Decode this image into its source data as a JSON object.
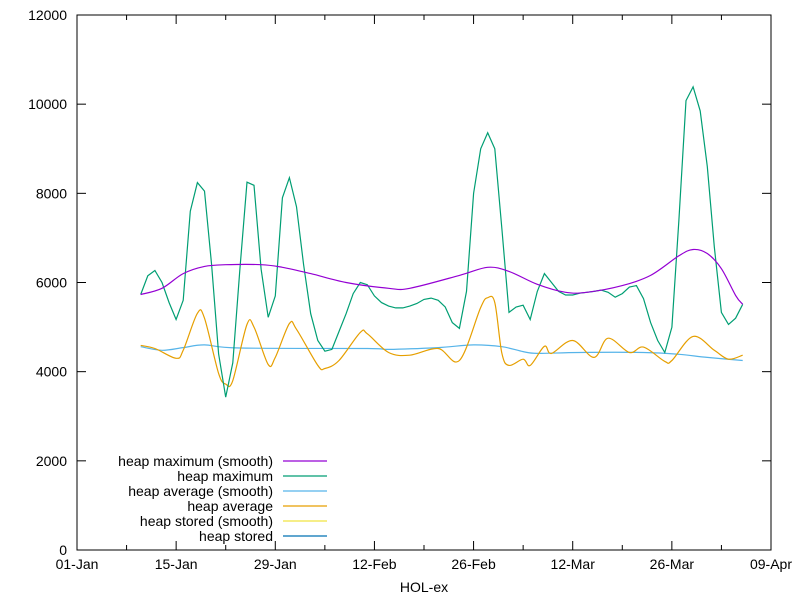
{
  "chart_data": {
    "type": "line",
    "title": "",
    "xlabel": "HOL-ex",
    "ylabel": "",
    "xlim": [
      "01-01",
      "04-09"
    ],
    "ylim": [
      0,
      12000
    ],
    "x_tick_labels": [
      "01-Jan",
      "15-Jan",
      "29-Jan",
      "12-Feb",
      "26-Feb",
      "12-Mar",
      "26-Mar",
      "09-Apr"
    ],
    "x_ticks": [
      "01-01",
      "01-15",
      "01-29",
      "02-12",
      "02-26",
      "03-12",
      "03-26",
      "04-09"
    ],
    "y_ticks": [
      0,
      2000,
      4000,
      6000,
      8000,
      10000,
      12000
    ],
    "y_tick_labels": [
      "0",
      "2000",
      "4000",
      "6000",
      "8000",
      "10000",
      "12000"
    ],
    "grid": false,
    "legend_position": "bottom-left",
    "series": [
      {
        "name": "heap maximum (smooth)",
        "color": "#9400d3",
        "smooth": true,
        "points": [
          [
            "01-10",
            5730
          ],
          [
            "01-13",
            5870
          ],
          [
            "01-16",
            6200
          ],
          [
            "01-19",
            6360
          ],
          [
            "01-22",
            6400
          ],
          [
            "01-27",
            6400
          ],
          [
            "01-30",
            6340
          ],
          [
            "02-03",
            6200
          ],
          [
            "02-08",
            6000
          ],
          [
            "02-14",
            5870
          ],
          [
            "02-17",
            5870
          ],
          [
            "02-24",
            6160
          ],
          [
            "02-28",
            6340
          ],
          [
            "03-03",
            6250
          ],
          [
            "03-07",
            5960
          ],
          [
            "03-11",
            5780
          ],
          [
            "03-14",
            5780
          ],
          [
            "03-19",
            5930
          ],
          [
            "03-23",
            6160
          ],
          [
            "03-27",
            6600
          ],
          [
            "03-29",
            6740
          ],
          [
            "03-31",
            6650
          ],
          [
            "04-02",
            6310
          ],
          [
            "04-04",
            5710
          ],
          [
            "04-05",
            5510
          ]
        ]
      },
      {
        "name": "heap maximum",
        "color": "#009e73",
        "smooth": false,
        "points": [
          [
            "01-10",
            5730
          ],
          [
            "01-11",
            6150
          ],
          [
            "01-12",
            6270
          ],
          [
            "01-13",
            6000
          ],
          [
            "01-14",
            5550
          ],
          [
            "01-15",
            5170
          ],
          [
            "01-16",
            5600
          ],
          [
            "01-17",
            7600
          ],
          [
            "01-18",
            8240
          ],
          [
            "01-19",
            8050
          ],
          [
            "01-20",
            6400
          ],
          [
            "01-21",
            4400
          ],
          [
            "01-22",
            3430
          ],
          [
            "01-23",
            4200
          ],
          [
            "01-24",
            6300
          ],
          [
            "01-25",
            8250
          ],
          [
            "01-26",
            8180
          ],
          [
            "01-27",
            6300
          ],
          [
            "01-28",
            5220
          ],
          [
            "01-29",
            5700
          ],
          [
            "01-30",
            7900
          ],
          [
            "01-31",
            8350
          ],
          [
            "02-01",
            7700
          ],
          [
            "02-02",
            6400
          ],
          [
            "02-03",
            5300
          ],
          [
            "02-04",
            4700
          ],
          [
            "02-05",
            4460
          ],
          [
            "02-06",
            4500
          ],
          [
            "02-07",
            4900
          ],
          [
            "02-08",
            5300
          ],
          [
            "02-09",
            5750
          ],
          [
            "02-10",
            6000
          ],
          [
            "02-11",
            5950
          ],
          [
            "02-12",
            5700
          ],
          [
            "02-13",
            5550
          ],
          [
            "02-14",
            5470
          ],
          [
            "02-15",
            5430
          ],
          [
            "02-16",
            5430
          ],
          [
            "02-17",
            5470
          ],
          [
            "02-18",
            5530
          ],
          [
            "02-19",
            5620
          ],
          [
            "02-20",
            5650
          ],
          [
            "02-21",
            5600
          ],
          [
            "02-22",
            5450
          ],
          [
            "02-23",
            5100
          ],
          [
            "02-24",
            4970
          ],
          [
            "02-25",
            5800
          ],
          [
            "02-26",
            8000
          ],
          [
            "02-27",
            9000
          ],
          [
            "02-28",
            9360
          ],
          [
            "03-01",
            9000
          ],
          [
            "03-02",
            7200
          ],
          [
            "03-03",
            5330
          ],
          [
            "03-04",
            5450
          ],
          [
            "03-05",
            5490
          ],
          [
            "03-06",
            5170
          ],
          [
            "03-07",
            5800
          ],
          [
            "03-08",
            6200
          ],
          [
            "03-09",
            6000
          ],
          [
            "03-10",
            5800
          ],
          [
            "03-11",
            5720
          ],
          [
            "03-12",
            5720
          ],
          [
            "03-13",
            5760
          ],
          [
            "03-14",
            5780
          ],
          [
            "03-15",
            5800
          ],
          [
            "03-16",
            5830
          ],
          [
            "03-17",
            5780
          ],
          [
            "03-18",
            5670
          ],
          [
            "03-19",
            5750
          ],
          [
            "03-20",
            5900
          ],
          [
            "03-21",
            5930
          ],
          [
            "03-22",
            5640
          ],
          [
            "03-23",
            5100
          ],
          [
            "03-24",
            4700
          ],
          [
            "03-25",
            4430
          ],
          [
            "03-26",
            5000
          ],
          [
            "03-27",
            7400
          ],
          [
            "03-28",
            10080
          ],
          [
            "03-29",
            10390
          ],
          [
            "03-30",
            9850
          ],
          [
            "03-31",
            8600
          ],
          [
            "04-01",
            6800
          ],
          [
            "04-02",
            5330
          ],
          [
            "04-03",
            5060
          ],
          [
            "04-04",
            5200
          ],
          [
            "04-05",
            5510
          ]
        ]
      },
      {
        "name": "heap average (smooth)",
        "color": "#56b4e9",
        "smooth": true,
        "points": [
          [
            "01-10",
            4560
          ],
          [
            "01-13",
            4480
          ],
          [
            "01-16",
            4540
          ],
          [
            "01-19",
            4600
          ],
          [
            "01-24",
            4530
          ],
          [
            "02-11",
            4520
          ],
          [
            "02-14",
            4500
          ],
          [
            "02-21",
            4540
          ],
          [
            "02-26",
            4600
          ],
          [
            "03-02",
            4560
          ],
          [
            "03-05",
            4450
          ],
          [
            "03-07",
            4410
          ],
          [
            "03-13",
            4430
          ],
          [
            "03-22",
            4430
          ],
          [
            "03-27",
            4390
          ],
          [
            "03-31",
            4320
          ],
          [
            "04-05",
            4250
          ]
        ]
      },
      {
        "name": "heap average",
        "color": "#e69f00",
        "smooth": true,
        "points": [
          [
            "01-10",
            4590
          ],
          [
            "01-12",
            4520
          ],
          [
            "01-15",
            4300
          ],
          [
            "01-16",
            4480
          ],
          [
            "01-18",
            5310
          ],
          [
            "01-19",
            5200
          ],
          [
            "01-21",
            3960
          ],
          [
            "01-22",
            3720
          ],
          [
            "01-23",
            3800
          ],
          [
            "01-25",
            5060
          ],
          [
            "01-26",
            5000
          ],
          [
            "01-28",
            4160
          ],
          [
            "01-29",
            4320
          ],
          [
            "01-31",
            5080
          ],
          [
            "02-01",
            4950
          ],
          [
            "02-04",
            4140
          ],
          [
            "02-05",
            4070
          ],
          [
            "02-07",
            4250
          ],
          [
            "02-10",
            4880
          ],
          [
            "02-11",
            4850
          ],
          [
            "02-14",
            4430
          ],
          [
            "02-17",
            4370
          ],
          [
            "02-21",
            4520
          ],
          [
            "02-24",
            4250
          ],
          [
            "02-27",
            5440
          ],
          [
            "02-28",
            5660
          ],
          [
            "03-01",
            5550
          ],
          [
            "03-02",
            4410
          ],
          [
            "03-03",
            4140
          ],
          [
            "03-05",
            4280
          ],
          [
            "03-06",
            4140
          ],
          [
            "03-08",
            4570
          ],
          [
            "03-09",
            4410
          ],
          [
            "03-12",
            4700
          ],
          [
            "03-15",
            4320
          ],
          [
            "03-17",
            4750
          ],
          [
            "03-20",
            4430
          ],
          [
            "03-22",
            4550
          ],
          [
            "03-25",
            4230
          ],
          [
            "03-26",
            4250
          ],
          [
            "03-29",
            4790
          ],
          [
            "04-01",
            4480
          ],
          [
            "04-03",
            4280
          ],
          [
            "04-05",
            4370
          ]
        ]
      },
      {
        "name": "heap stored (smooth)",
        "color": "#f0e442",
        "smooth": true,
        "points": []
      },
      {
        "name": "heap stored",
        "color": "#0072b2",
        "smooth": false,
        "points": []
      }
    ]
  }
}
